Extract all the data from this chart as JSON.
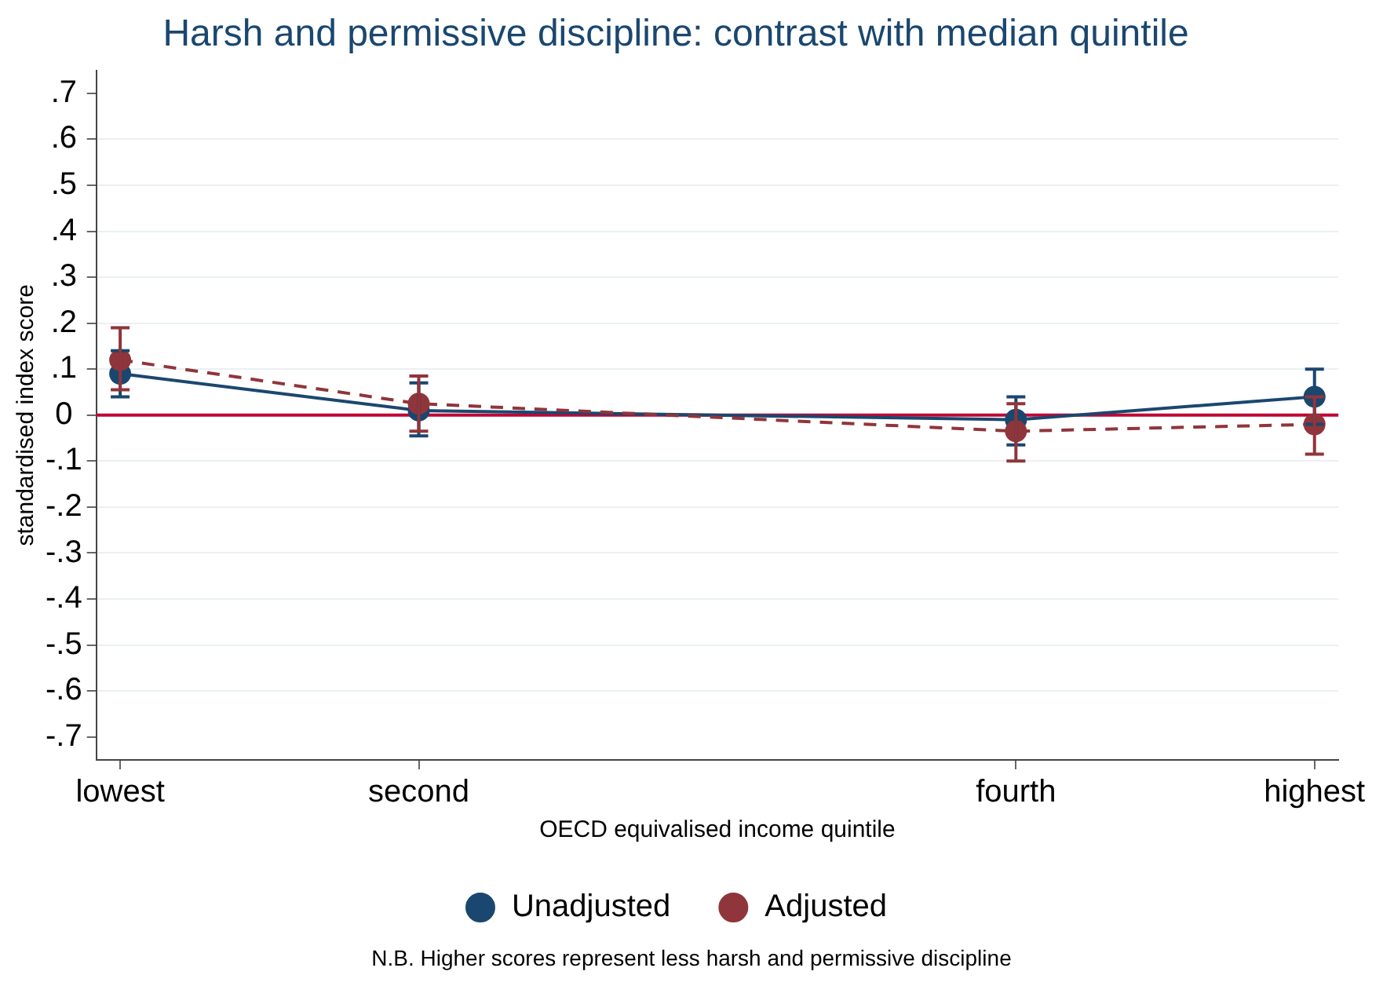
{
  "chart_data": {
    "type": "line",
    "title": "Harsh and permissive discipline: contrast with median quintile",
    "xlabel": "OECD equivalised income quintile",
    "ylabel": "standardised index score",
    "categories": [
      "lowest",
      "second",
      null,
      "fourth",
      "highest"
    ],
    "ylim": [
      -0.75,
      0.75
    ],
    "yticks": [
      {
        "value": -0.7,
        "label": "-.7"
      },
      {
        "value": -0.6,
        "label": "-.6"
      },
      {
        "value": -0.5,
        "label": "-.5"
      },
      {
        "value": -0.4,
        "label": "-.4"
      },
      {
        "value": -0.3,
        "label": "-.3"
      },
      {
        "value": -0.2,
        "label": "-.2"
      },
      {
        "value": -0.1,
        "label": "-.1"
      },
      0,
      {
        "value": 0.1,
        "label": ".1"
      },
      {
        "value": 0.2,
        "label": ".2"
      },
      {
        "value": 0.3,
        "label": ".3"
      },
      {
        "value": 0.4,
        "label": ".4"
      },
      {
        "value": 0.5,
        "label": ".5"
      },
      {
        "value": 0.6,
        "label": ".6"
      },
      {
        "value": 0.7,
        "label": ".7"
      }
    ],
    "series": [
      {
        "name": "Unadjusted",
        "color": "#1a476f",
        "values": [
          0.09,
          0.01,
          null,
          -0.01,
          0.04
        ],
        "errors": [
          [
            0.04,
            0.14
          ],
          [
            -0.045,
            0.07
          ],
          null,
          [
            -0.065,
            0.04
          ],
          [
            -0.02,
            0.1
          ]
        ],
        "line_style": "solid"
      },
      {
        "name": "Adjusted",
        "color": "#90353b",
        "values": [
          0.12,
          0.025,
          null,
          -0.035,
          -0.02
        ],
        "errors": [
          [
            0.055,
            0.19
          ],
          [
            -0.035,
            0.085
          ],
          null,
          [
            -0.1,
            0.025
          ],
          [
            -0.085,
            0.04
          ]
        ],
        "line_style": "dashed"
      }
    ],
    "ref_lines": [
      {
        "axis": "y",
        "value": 0,
        "color": "#c10534"
      }
    ],
    "marker": "circle",
    "grid": "y",
    "legend": "bottom",
    "annotations": [
      "N.B. Higher scores represent less harsh and permissive discipline"
    ]
  }
}
